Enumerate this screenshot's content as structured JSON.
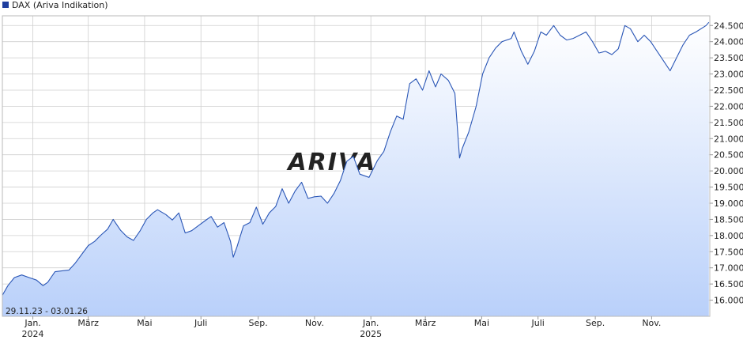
{
  "legend": {
    "label": "DAX (Ariva Indikation)",
    "swatch_color": "#1f3f9f"
  },
  "watermark": "ARIVA.DE",
  "date_range": "29.11.23 - 03.01.26",
  "colors": {
    "line": "#2a56b6",
    "fill_top": "#ffffff",
    "fill_bottom": "#b9d0fa",
    "grid": "#cfcfcf"
  },
  "chart_data": {
    "type": "area",
    "xlabel": "",
    "ylabel": "",
    "ylim": [
      15500,
      24800
    ],
    "xlim": [
      "2023-11-29",
      "2026-01-03"
    ],
    "y_ticks": [
      16000,
      16500,
      17000,
      17500,
      18000,
      18500,
      19000,
      19500,
      20000,
      20500,
      21000,
      21500,
      22000,
      22500,
      23000,
      23500,
      24000,
      24500
    ],
    "y_tick_labels": [
      "16.000",
      "16.500",
      "17.000",
      "17.500",
      "18.000",
      "18.500",
      "19.000",
      "19.500",
      "20.000",
      "20.500",
      "21.000",
      "21.500",
      "22.000",
      "22.500",
      "23.000",
      "23.500",
      "24.000",
      "24.500"
    ],
    "x_ticks": [
      {
        "date": "2024-01-01",
        "label": "Jan.",
        "year": "2024"
      },
      {
        "date": "2024-03-01",
        "label": "März",
        "year": ""
      },
      {
        "date": "2024-05-01",
        "label": "Mai",
        "year": ""
      },
      {
        "date": "2024-07-01",
        "label": "Juli",
        "year": ""
      },
      {
        "date": "2024-09-01",
        "label": "Sep.",
        "year": ""
      },
      {
        "date": "2024-11-01",
        "label": "Nov.",
        "year": ""
      },
      {
        "date": "2025-01-01",
        "label": "Jan.",
        "year": "2025"
      },
      {
        "date": "2025-03-01",
        "label": "März",
        "year": ""
      },
      {
        "date": "2025-05-01",
        "label": "Mai",
        "year": ""
      },
      {
        "date": "2025-07-01",
        "label": "Juli",
        "year": ""
      },
      {
        "date": "2025-09-01",
        "label": "Sep.",
        "year": ""
      },
      {
        "date": "2025-11-01",
        "label": "Nov.",
        "year": ""
      }
    ],
    "grid": true,
    "legend_position": "top-left",
    "series": [
      {
        "name": "DAX (Ariva Indikation)",
        "x": [
          "2023-11-29",
          "2023-12-05",
          "2023-12-12",
          "2023-12-20",
          "2023-12-28",
          "2024-01-05",
          "2024-01-12",
          "2024-01-17",
          "2024-01-25",
          "2024-02-02",
          "2024-02-09",
          "2024-02-16",
          "2024-02-23",
          "2024-03-01",
          "2024-03-08",
          "2024-03-15",
          "2024-03-22",
          "2024-03-28",
          "2024-04-05",
          "2024-04-12",
          "2024-04-19",
          "2024-04-26",
          "2024-05-03",
          "2024-05-10",
          "2024-05-15",
          "2024-05-24",
          "2024-05-31",
          "2024-06-07",
          "2024-06-14",
          "2024-06-21",
          "2024-06-28",
          "2024-07-05",
          "2024-07-12",
          "2024-07-19",
          "2024-07-26",
          "2024-08-02",
          "2024-08-05",
          "2024-08-09",
          "2024-08-16",
          "2024-08-23",
          "2024-08-30",
          "2024-09-06",
          "2024-09-13",
          "2024-09-20",
          "2024-09-27",
          "2024-10-04",
          "2024-10-11",
          "2024-10-18",
          "2024-10-25",
          "2024-11-01",
          "2024-11-08",
          "2024-11-15",
          "2024-11-22",
          "2024-11-29",
          "2024-12-06",
          "2024-12-13",
          "2024-12-20",
          "2024-12-30",
          "2025-01-08",
          "2025-01-15",
          "2025-01-22",
          "2025-01-29",
          "2025-02-05",
          "2025-02-12",
          "2025-02-19",
          "2025-02-26",
          "2025-03-05",
          "2025-03-12",
          "2025-03-18",
          "2025-03-26",
          "2025-04-02",
          "2025-04-07",
          "2025-04-10",
          "2025-04-17",
          "2025-04-25",
          "2025-05-02",
          "2025-05-09",
          "2025-05-16",
          "2025-05-23",
          "2025-06-02",
          "2025-06-05",
          "2025-06-13",
          "2025-06-20",
          "2025-06-27",
          "2025-07-04",
          "2025-07-10",
          "2025-07-18",
          "2025-07-25",
          "2025-08-01",
          "2025-08-08",
          "2025-08-15",
          "2025-08-22",
          "2025-08-29",
          "2025-09-05",
          "2025-09-12",
          "2025-09-19",
          "2025-09-26",
          "2025-10-03",
          "2025-10-09",
          "2025-10-17",
          "2025-10-24",
          "2025-10-31",
          "2025-11-07",
          "2025-11-14",
          "2025-11-21",
          "2025-11-28",
          "2025-12-05",
          "2025-12-12",
          "2025-12-19",
          "2025-12-30",
          "2026-01-02"
        ],
        "values": [
          16150,
          16450,
          16700,
          16780,
          16700,
          16620,
          16450,
          16550,
          16880,
          16910,
          16930,
          17150,
          17420,
          17690,
          17820,
          18020,
          18200,
          18500,
          18160,
          17960,
          17850,
          18140,
          18500,
          18700,
          18800,
          18650,
          18480,
          18700,
          18080,
          18150,
          18300,
          18450,
          18590,
          18260,
          18400,
          17820,
          17330,
          17650,
          18300,
          18400,
          18880,
          18350,
          18700,
          18900,
          19450,
          19000,
          19380,
          19650,
          19150,
          19200,
          19220,
          19000,
          19300,
          19700,
          20300,
          20450,
          19900,
          19800,
          20320,
          20600,
          21200,
          21700,
          21600,
          22700,
          22850,
          22500,
          23100,
          22600,
          23000,
          22800,
          22400,
          20400,
          20700,
          21200,
          22000,
          23000,
          23500,
          23800,
          24000,
          24100,
          24300,
          23700,
          23300,
          23700,
          24300,
          24200,
          24500,
          24200,
          24050,
          24100,
          24200,
          24300,
          24000,
          23650,
          23700,
          23600,
          23780,
          24500,
          24400,
          24000,
          24200,
          24000,
          23700,
          23400,
          23100,
          23500,
          23900,
          24200,
          24300,
          24500,
          24600
        ]
      }
    ]
  }
}
